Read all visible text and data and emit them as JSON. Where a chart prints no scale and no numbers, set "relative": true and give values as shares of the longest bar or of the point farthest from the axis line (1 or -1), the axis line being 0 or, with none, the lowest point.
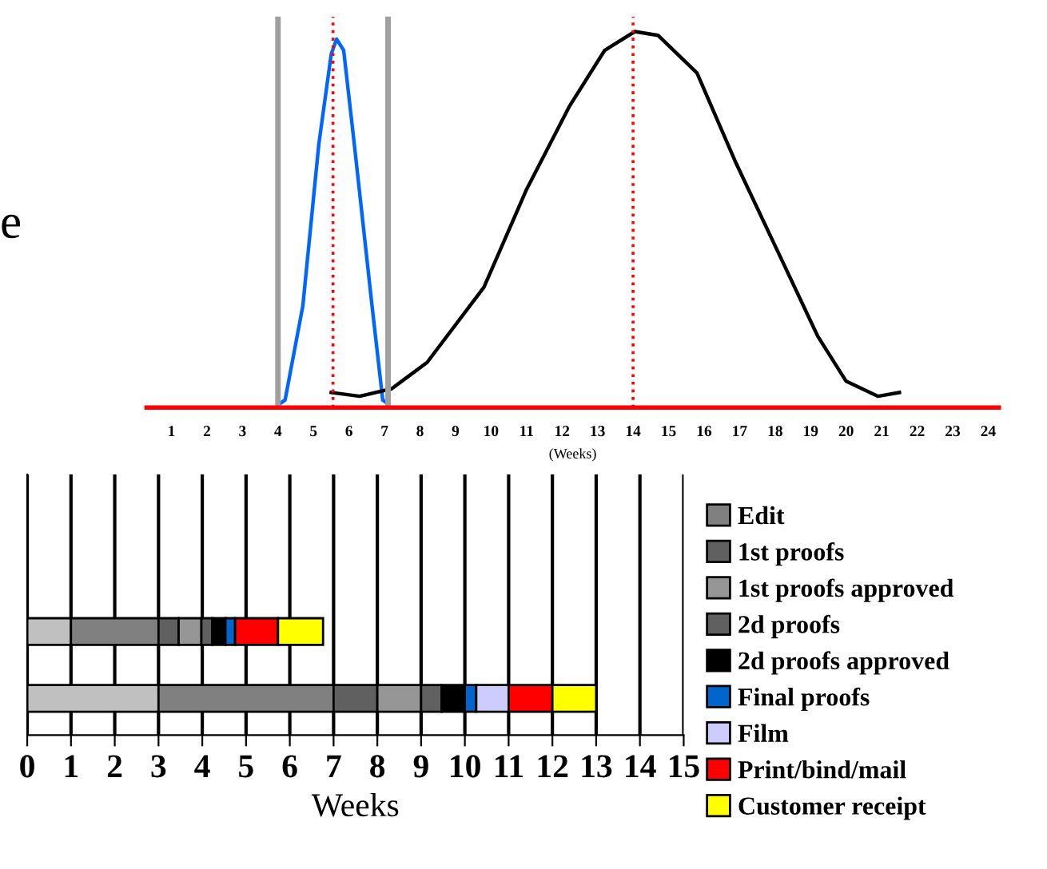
{
  "chart_data": [
    {
      "type": "line",
      "relative": true,
      "xlabel": "(Weeks)",
      "xlim": [
        0.3,
        24.3
      ],
      "xticks": [
        1,
        2,
        3,
        4,
        5,
        6,
        7,
        8,
        9,
        10,
        11,
        12,
        13,
        14,
        15,
        16,
        17,
        18,
        19,
        20,
        21,
        22,
        23,
        24
      ],
      "tick_labels": "x",
      "marker": "none",
      "line_style": "solid",
      "annotations": [
        "e"
      ],
      "ref_lines": [
        {
          "axis": "x",
          "value": 4,
          "color": "#a0a0a0",
          "line_style": "solid"
        },
        {
          "axis": "x",
          "value": 7.1,
          "color": "#a0a0a0",
          "line_style": "solid"
        },
        {
          "axis": "x",
          "value": 5.55,
          "color": "#ff0000",
          "line_style": "dotted"
        },
        {
          "axis": "x",
          "value": 14,
          "color": "#ff0000",
          "line_style": "dotted"
        }
      ],
      "series": [
        {
          "color": "#0066ff",
          "x": [
            4.05,
            4.2,
            4.7,
            5.15,
            5.5,
            5.65,
            5.85,
            6.15,
            6.65,
            6.95,
            7.1
          ],
          "values": [
            0.01,
            0.02,
            0.27,
            0.7,
            0.94,
            0.98,
            0.95,
            0.7,
            0.27,
            0.02,
            0.01
          ]
        },
        {
          "color": "#000000",
          "x": [
            5.5,
            6.3,
            7.2,
            8.2,
            9.8,
            11.0,
            12.2,
            13.2,
            14.05,
            14.7,
            15.8,
            16.9,
            18.2,
            19.2,
            20.0,
            20.9,
            21.5
          ],
          "values": [
            0.04,
            0.03,
            0.05,
            0.12,
            0.32,
            0.58,
            0.8,
            0.95,
            1.0,
            0.99,
            0.89,
            0.65,
            0.39,
            0.19,
            0.07,
            0.03,
            0.04
          ]
        }
      ]
    },
    {
      "type": "bar",
      "orientation": "horizontal",
      "stacked": true,
      "categories": [
        null,
        null
      ],
      "xlabel": "Weeks",
      "xlim": [
        0,
        15
      ],
      "xticks": [
        0,
        1,
        2,
        3,
        4,
        5,
        6,
        7,
        8,
        9,
        10,
        11,
        12,
        13,
        14,
        15
      ],
      "grid": "x",
      "legend": "right",
      "series": [
        {
          "color": "#c0c0c0",
          "values": [
            1,
            3
          ]
        },
        {
          "name": "Edit",
          "color": "#808080",
          "values": [
            2,
            4
          ]
        },
        {
          "name": "1st proofs",
          "color": "#606060",
          "values": [
            0.46,
            1
          ]
        },
        {
          "name": "1st proofs approved",
          "color": "#969696",
          "values": [
            0.52,
            1
          ]
        },
        {
          "name": "2d proofs",
          "color": "#606060",
          "values": [
            0.25,
            0.47
          ]
        },
        {
          "name": "2d proofs approved",
          "color": "#000000",
          "values": [
            0.3,
            0.53
          ]
        },
        {
          "name": "Final proofs",
          "color": "#0066cc",
          "values": [
            0.22,
            0.26
          ]
        },
        {
          "name": "Film",
          "color": "#ccccff",
          "values": [
            null,
            0.74
          ]
        },
        {
          "name": "Print/bind/mail",
          "color": "#ff0000",
          "values": [
            0.98,
            1
          ]
        },
        {
          "name": "Customer receipt",
          "color": "#ffff00",
          "values": [
            1.03,
            1
          ]
        }
      ]
    }
  ]
}
